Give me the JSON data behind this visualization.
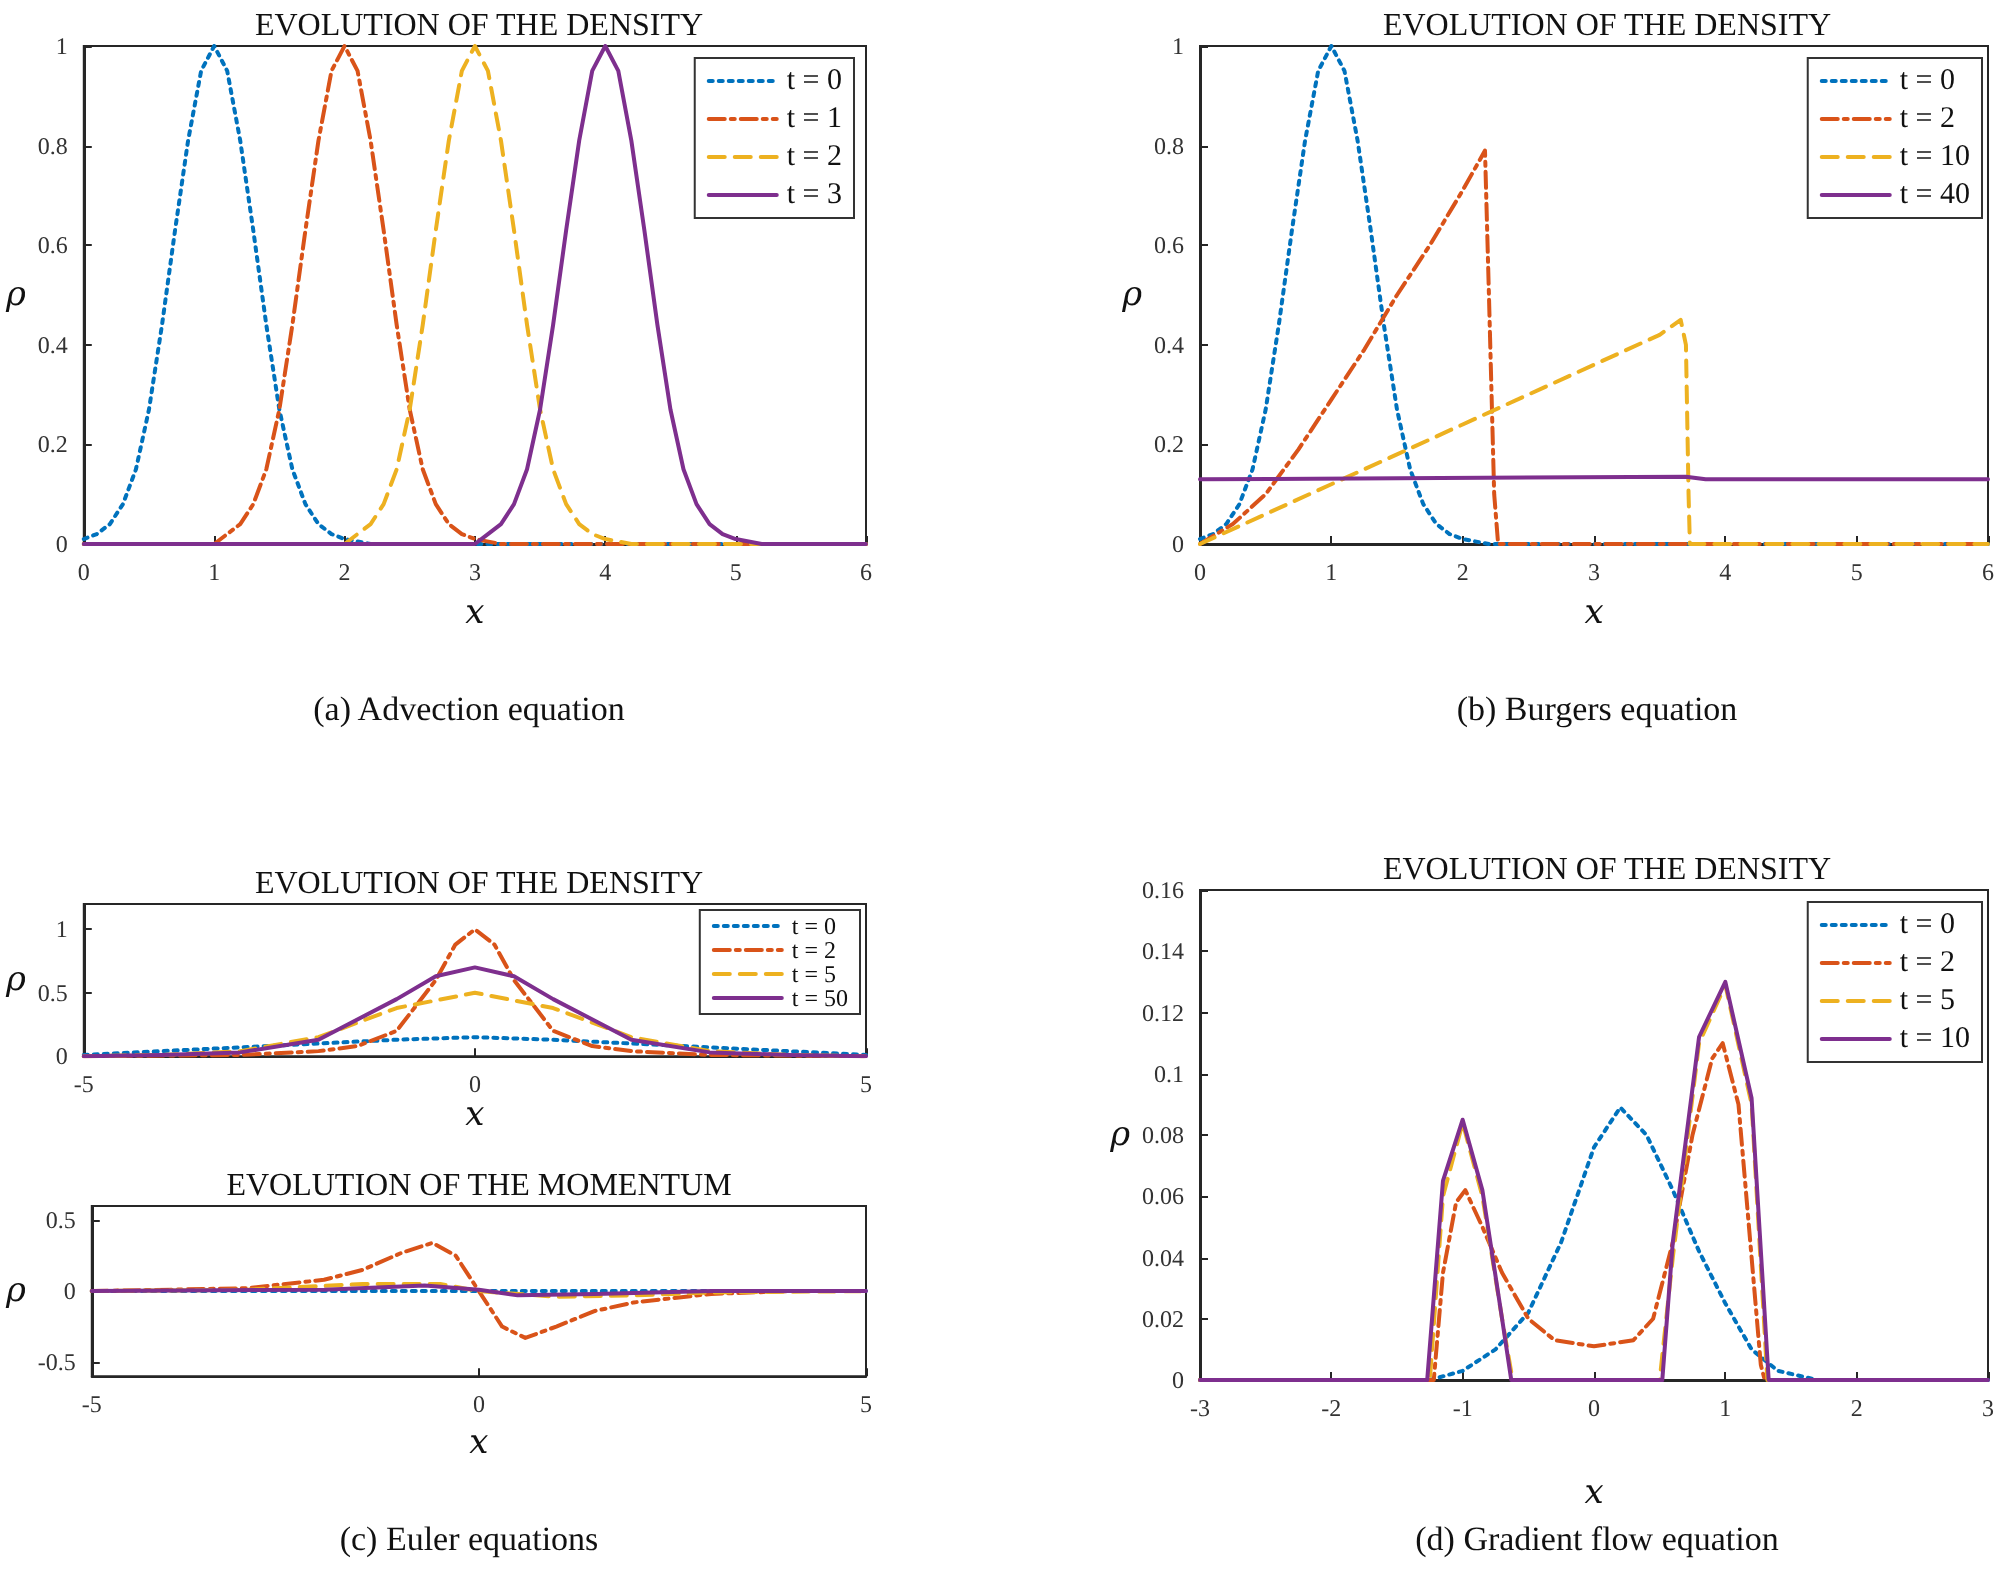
{
  "chart_data": [
    {
      "type": "line",
      "title": "EVOLUTION OF THE DENSITY",
      "xlabel": "x",
      "ylabel": "ρ",
      "xlim": [
        0,
        6
      ],
      "xticks": [
        0,
        1,
        2,
        3,
        4,
        5,
        6
      ],
      "ylim": [
        0,
        1
      ],
      "yticks": [
        0,
        0.2,
        0.4,
        0.6,
        0.8,
        1
      ],
      "grid": false,
      "legend": "top right",
      "marker": "none",
      "annotations": [
        "(a) Advection equation"
      ],
      "series": [
        {
          "name": "t = 0",
          "color": "#0072bd",
          "line_style": "dotted",
          "x": [
            0,
            0.1,
            0.2,
            0.3,
            0.4,
            0.5,
            0.6,
            0.7,
            0.8,
            0.9,
            1,
            1.1,
            1.2,
            1.3,
            1.4,
            1.5,
            1.6,
            1.7,
            1.8,
            1.9,
            2,
            2.2,
            6
          ],
          "values": [
            0.01,
            0.02,
            0.04,
            0.08,
            0.15,
            0.27,
            0.44,
            0.63,
            0.81,
            0.95,
            1,
            0.95,
            0.81,
            0.63,
            0.44,
            0.27,
            0.15,
            0.08,
            0.04,
            0.02,
            0.01,
            0,
            0
          ]
        },
        {
          "name": "t = 1",
          "color": "#d95319",
          "line_style": "dashdot",
          "x": [
            0,
            1,
            1.1,
            1.2,
            1.3,
            1.4,
            1.5,
            1.6,
            1.7,
            1.8,
            1.9,
            2,
            2.1,
            2.2,
            2.3,
            2.4,
            2.5,
            2.6,
            2.7,
            2.8,
            2.9,
            3,
            3.2,
            6
          ],
          "values": [
            0,
            0,
            0.02,
            0.04,
            0.08,
            0.15,
            0.27,
            0.44,
            0.63,
            0.81,
            0.95,
            1,
            0.95,
            0.81,
            0.63,
            0.44,
            0.27,
            0.15,
            0.08,
            0.04,
            0.02,
            0.01,
            0,
            0
          ]
        },
        {
          "name": "t = 2",
          "color": "#edb120",
          "line_style": "dashed",
          "x": [
            0,
            2,
            2.1,
            2.2,
            2.3,
            2.4,
            2.5,
            2.6,
            2.7,
            2.8,
            2.9,
            3,
            3.1,
            3.2,
            3.3,
            3.4,
            3.5,
            3.6,
            3.7,
            3.8,
            3.9,
            4,
            4.2,
            6
          ],
          "values": [
            0,
            0,
            0.02,
            0.04,
            0.08,
            0.15,
            0.27,
            0.44,
            0.63,
            0.81,
            0.95,
            1,
            0.95,
            0.81,
            0.63,
            0.44,
            0.27,
            0.15,
            0.08,
            0.04,
            0.02,
            0.01,
            0,
            0
          ]
        },
        {
          "name": "t = 3",
          "color": "#7e2f8e",
          "line_style": "solid",
          "x": [
            0,
            3,
            3.1,
            3.2,
            3.3,
            3.4,
            3.5,
            3.6,
            3.7,
            3.8,
            3.9,
            4,
            4.1,
            4.2,
            4.3,
            4.4,
            4.5,
            4.6,
            4.7,
            4.8,
            4.9,
            5,
            5.2,
            6
          ],
          "values": [
            0,
            0,
            0.02,
            0.04,
            0.08,
            0.15,
            0.27,
            0.44,
            0.63,
            0.81,
            0.95,
            1,
            0.95,
            0.81,
            0.63,
            0.44,
            0.27,
            0.15,
            0.08,
            0.04,
            0.02,
            0.01,
            0,
            0
          ]
        }
      ]
    },
    {
      "type": "line",
      "title": "EVOLUTION OF THE DENSITY",
      "xlabel": "x",
      "ylabel": "ρ",
      "xlim": [
        0,
        6
      ],
      "xticks": [
        0,
        1,
        2,
        3,
        4,
        5,
        6
      ],
      "ylim": [
        0,
        1
      ],
      "yticks": [
        0,
        0.2,
        0.4,
        0.6,
        0.8,
        1
      ],
      "grid": false,
      "legend": "top right",
      "marker": "none",
      "annotations": [
        "(b) Burgers equation"
      ],
      "series": [
        {
          "name": "t = 0",
          "color": "#0072bd",
          "line_style": "dotted",
          "x": [
            0,
            0.1,
            0.2,
            0.3,
            0.4,
            0.5,
            0.6,
            0.7,
            0.8,
            0.9,
            1,
            1.1,
            1.2,
            1.3,
            1.4,
            1.5,
            1.6,
            1.7,
            1.8,
            1.9,
            2,
            2.2,
            6
          ],
          "values": [
            0.01,
            0.02,
            0.04,
            0.08,
            0.15,
            0.27,
            0.44,
            0.63,
            0.81,
            0.95,
            1,
            0.95,
            0.81,
            0.63,
            0.44,
            0.27,
            0.15,
            0.08,
            0.04,
            0.02,
            0.01,
            0,
            0
          ]
        },
        {
          "name": "t = 2",
          "color": "#d95319",
          "line_style": "dashdot",
          "x": [
            0,
            0.25,
            0.5,
            0.75,
            1,
            1.25,
            1.5,
            1.75,
            2,
            2.17,
            2.2,
            2.24,
            2.27,
            6
          ],
          "values": [
            0,
            0.04,
            0.1,
            0.19,
            0.29,
            0.39,
            0.5,
            0.6,
            0.71,
            0.79,
            0.5,
            0.1,
            0,
            0
          ]
        },
        {
          "name": "t = 10",
          "color": "#edb120",
          "line_style": "dashed",
          "x": [
            0,
            0.5,
            1,
            1.5,
            2,
            2.5,
            3,
            3.5,
            3.66,
            3.7,
            3.72,
            3.73,
            6
          ],
          "values": [
            0,
            0.06,
            0.12,
            0.18,
            0.24,
            0.3,
            0.36,
            0.42,
            0.45,
            0.4,
            0.1,
            0,
            0
          ]
        },
        {
          "name": "t = 40",
          "color": "#7e2f8e",
          "line_style": "solid",
          "x": [
            0,
            3.7,
            3.85,
            6
          ],
          "values": [
            0.13,
            0.135,
            0.13,
            0.13
          ]
        }
      ]
    },
    {
      "type": "line",
      "title": "EVOLUTION OF THE DENSITY",
      "xlabel": "x",
      "ylabel": "ρ",
      "xlim": [
        -5,
        5
      ],
      "xticks": [
        -5,
        0,
        5
      ],
      "ylim": [
        0,
        1.2
      ],
      "yticks": [
        0,
        0.5,
        1
      ],
      "grid": false,
      "legend": "top right",
      "marker": "none",
      "series": [
        {
          "name": "t = 0",
          "color": "#0072bd",
          "line_style": "dotted",
          "x": [
            -5,
            -4,
            -3,
            -2,
            -1,
            0,
            1,
            2,
            3,
            4,
            5
          ],
          "values": [
            0.01,
            0.04,
            0.07,
            0.1,
            0.13,
            0.15,
            0.13,
            0.1,
            0.07,
            0.04,
            0.01
          ]
        },
        {
          "name": "t = 2",
          "color": "#d95319",
          "line_style": "dashdot",
          "x": [
            -5,
            -3,
            -2,
            -1.5,
            -1,
            -0.5,
            -0.25,
            0,
            0.25,
            0.5,
            1,
            1.5,
            2,
            3,
            5
          ],
          "values": [
            0,
            0.01,
            0.04,
            0.08,
            0.2,
            0.6,
            0.88,
            1,
            0.88,
            0.6,
            0.2,
            0.08,
            0.04,
            0.01,
            0
          ]
        },
        {
          "name": "t = 5",
          "color": "#edb120",
          "line_style": "dashed",
          "x": [
            -5,
            -4,
            -3,
            -2,
            -1,
            0,
            1,
            2,
            3,
            4,
            5
          ],
          "values": [
            0,
            0.01,
            0.04,
            0.15,
            0.38,
            0.5,
            0.38,
            0.15,
            0.04,
            0.01,
            0
          ]
        },
        {
          "name": "t = 50",
          "color": "#7e2f8e",
          "line_style": "solid",
          "x": [
            -5,
            -4,
            -3,
            -2,
            -1,
            -0.5,
            0,
            0.5,
            1,
            2,
            3,
            4,
            5
          ],
          "values": [
            0,
            0.01,
            0.03,
            0.13,
            0.45,
            0.63,
            0.7,
            0.63,
            0.45,
            0.13,
            0.03,
            0.01,
            0
          ]
        }
      ]
    },
    {
      "type": "line",
      "title": "EVOLUTION OF THE MOMENTUM",
      "xlabel": "x",
      "ylabel": "ρ",
      "xlim": [
        -5,
        5
      ],
      "xticks": [
        -5,
        0,
        5
      ],
      "ylim": [
        -0.6,
        0.6
      ],
      "yticks": [
        -0.5,
        0,
        0.5
      ],
      "grid": false,
      "marker": "none",
      "annotations": [
        "(c) Euler equations"
      ],
      "series": [
        {
          "color": "#0072bd",
          "line_style": "dotted",
          "x": [
            -5,
            5
          ],
          "values": [
            0,
            0
          ]
        },
        {
          "color": "#d95319",
          "line_style": "dashdot",
          "x": [
            -5,
            -3,
            -2,
            -1.5,
            -1,
            -0.6,
            -0.3,
            0,
            0.3,
            0.6,
            1,
            1.5,
            2,
            3,
            4,
            5
          ],
          "values": [
            0,
            0.02,
            0.08,
            0.15,
            0.27,
            0.34,
            0.25,
            0,
            -0.25,
            -0.33,
            -0.25,
            -0.14,
            -0.08,
            -0.02,
            0,
            0
          ]
        },
        {
          "color": "#edb120",
          "line_style": "dashed",
          "x": [
            -5,
            -3,
            -1.5,
            -0.5,
            0,
            1,
            2,
            3,
            5
          ],
          "values": [
            0,
            0.01,
            0.05,
            0.05,
            0,
            -0.04,
            -0.03,
            -0.01,
            0
          ]
        },
        {
          "color": "#7e2f8e",
          "line_style": "solid",
          "x": [
            -5,
            -2,
            -0.7,
            0,
            0.5,
            1.5,
            3,
            5
          ],
          "values": [
            0,
            0.01,
            0.04,
            0.01,
            -0.03,
            -0.02,
            0,
            0
          ]
        }
      ]
    },
    {
      "type": "line",
      "title": "EVOLUTION OF THE DENSITY",
      "xlabel": "x",
      "ylabel": "ρ",
      "xlim": [
        -3,
        3
      ],
      "xticks": [
        -3,
        -2,
        -1,
        0,
        1,
        2,
        3
      ],
      "ylim": [
        0,
        0.16
      ],
      "yticks": [
        0,
        0.02,
        0.04,
        0.06,
        0.08,
        0.1,
        0.12,
        0.14,
        0.16
      ],
      "grid": false,
      "legend": "top right",
      "marker": "none",
      "annotations": [
        "(d) Gradient flow equation"
      ],
      "series": [
        {
          "name": "t = 0",
          "color": "#0072bd",
          "line_style": "dotted",
          "x": [
            -3,
            -1.25,
            -1,
            -0.75,
            -0.5,
            -0.25,
            0,
            0.2,
            0.4,
            0.6,
            0.8,
            1,
            1.2,
            1.4,
            1.7,
            3
          ],
          "values": [
            0,
            0,
            0.003,
            0.01,
            0.022,
            0.045,
            0.076,
            0.089,
            0.08,
            0.062,
            0.042,
            0.025,
            0.01,
            0.003,
            0,
            0
          ]
        },
        {
          "name": "t = 2",
          "color": "#d95319",
          "line_style": "dashdot",
          "x": [
            -3,
            -1.22,
            -1.15,
            -1.05,
            -0.98,
            -0.85,
            -0.7,
            -0.5,
            -0.3,
            0,
            0.3,
            0.45,
            0.6,
            0.75,
            0.9,
            0.98,
            1.1,
            1.2,
            1.27,
            1.3,
            3
          ],
          "values": [
            0,
            0,
            0.035,
            0.058,
            0.062,
            0.05,
            0.035,
            0.02,
            0.013,
            0.011,
            0.013,
            0.02,
            0.045,
            0.08,
            0.105,
            0.11,
            0.09,
            0.04,
            0.005,
            0,
            0
          ]
        },
        {
          "name": "t = 5",
          "color": "#edb120",
          "line_style": "dashed",
          "x": [
            -3,
            -1.25,
            -1.15,
            -1,
            -0.85,
            -0.7,
            -0.62,
            0.5,
            0.6,
            0.8,
            1,
            1.2,
            1.32,
            3
          ],
          "values": [
            0,
            0,
            0.06,
            0.084,
            0.06,
            0.02,
            0,
            0,
            0.04,
            0.11,
            0.129,
            0.09,
            0,
            0
          ]
        },
        {
          "name": "t = 10",
          "color": "#7e2f8e",
          "line_style": "solid",
          "x": [
            -3,
            -1.27,
            -1.15,
            -1,
            -0.85,
            -0.7,
            -0.63,
            0.52,
            0.6,
            0.8,
            1,
            1.2,
            1.33,
            3
          ],
          "values": [
            0,
            0,
            0.065,
            0.085,
            0.062,
            0.02,
            0,
            0,
            0.045,
            0.112,
            0.13,
            0.092,
            0,
            0
          ]
        }
      ]
    }
  ]
}
